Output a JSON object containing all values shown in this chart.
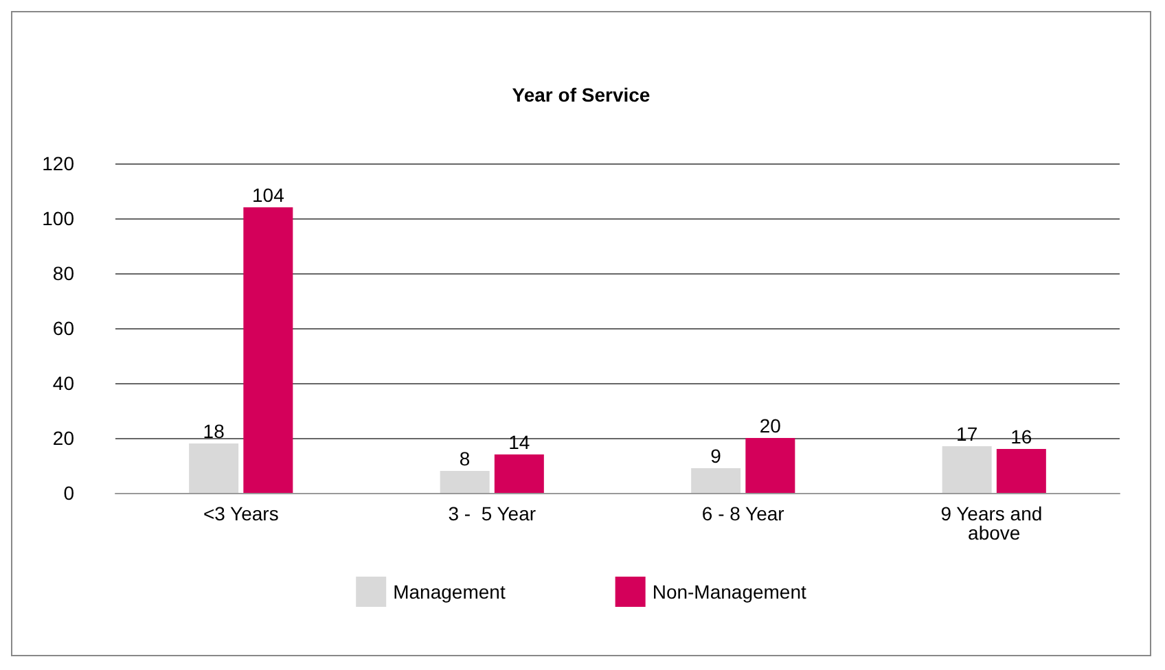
{
  "chart_data": {
    "type": "bar",
    "title": "Year of Service",
    "categories": [
      "<3 Years",
      "3 -  5 Year",
      "6 - 8 Year",
      "9 Years and above"
    ],
    "series": [
      {
        "name": "Management",
        "color": "#d9d9d9",
        "values": [
          18,
          8,
          9,
          17
        ]
      },
      {
        "name": "Non-Management",
        "color": "#d4005a",
        "values": [
          104,
          14,
          20,
          16
        ]
      }
    ],
    "ylim": [
      0,
      120
    ],
    "yticks": [
      0,
      20,
      40,
      60,
      80,
      100,
      120
    ],
    "grid": "y",
    "legend": "bottom",
    "data_labels": true
  }
}
